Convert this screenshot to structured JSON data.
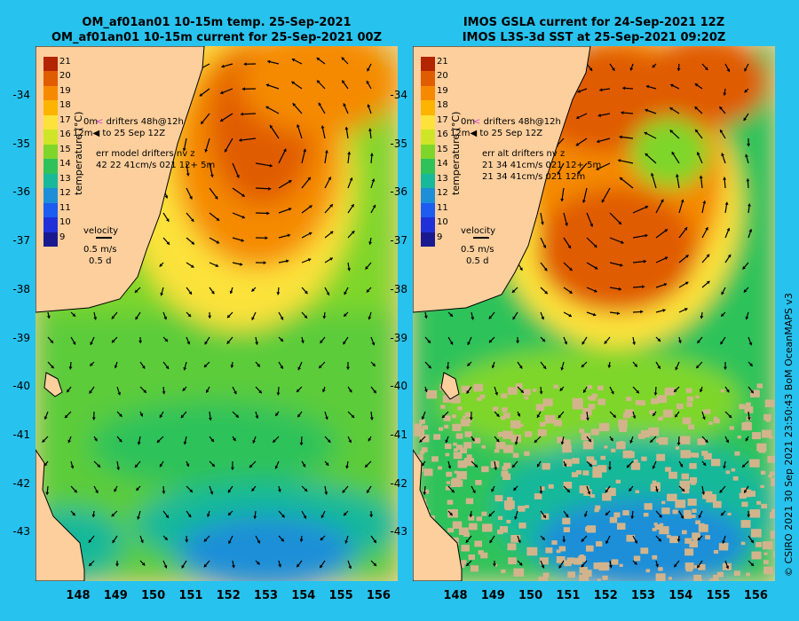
{
  "panels": [
    {
      "title_line1": "OM_af01an01 10-15m temp. 25-Sep-2021",
      "title_line2": "OM_af01an01 10-15m current for 25-Sep-2021 00Z",
      "colorbar_title": "temperature (°C)",
      "legend": {
        "drifters_line1": "drifters 48h@12h",
        "drifters_line2": "to 25 Sep 12Z",
        "depth_tag": "12m",
        "depth_tag2": "0m",
        "err_line1": "err model drifters nv z",
        "err_line2": "42 22 41cm/s 021 12+ 5m",
        "err_line3": "",
        "velocity_label": "velocity",
        "velocity_scale": "0.5 m/s",
        "velocity_days": "0.5 d"
      }
    },
    {
      "title_line1": "IMOS GSLA current for 24-Sep-2021 12Z",
      "title_line2": "IMOS L3S-3d SST at 25-Sep-2021 09:20Z",
      "colorbar_title": "temperature (°C)",
      "legend": {
        "drifters_line1": "drifters 48h@12h",
        "drifters_line2": "to 25 Sep 12Z",
        "depth_tag": "12m",
        "depth_tag2": "0m",
        "err_line1": "err alt drifters nv z",
        "err_line2": "21 34 41cm/s 021 12+ 5m",
        "err_line3": "21 34 41cm/s 021 12m",
        "velocity_label": "velocity",
        "velocity_scale": "0.5 m/s",
        "velocity_days": "0.5 d"
      }
    }
  ],
  "colorbar": {
    "ticks": [
      "21",
      "20",
      "19",
      "18",
      "17",
      "16",
      "15",
      "14",
      "13",
      "12",
      "11",
      "10",
      "9"
    ],
    "colors": [
      "#b32400",
      "#e05c00",
      "#f58a00",
      "#fcb400",
      "#fce23a",
      "#cfe628",
      "#7fd62a",
      "#2fc25a",
      "#18b89a",
      "#1c8fd8",
      "#1c5cf0",
      "#2030d8",
      "#1a1a90"
    ]
  },
  "latitude_ticks": [
    "-34",
    "-35",
    "-36",
    "-37",
    "-38",
    "-39",
    "-40",
    "-41",
    "-42",
    "-43"
  ],
  "longitude_ticks": [
    "148",
    "149",
    "150",
    "151",
    "152",
    "153",
    "154",
    "155",
    "156"
  ],
  "credit": "© CSIRO 2021   30 Sep 2021 23:50:43 BoM OceanMAPS v3",
  "colors": {
    "background": "#28c2ee",
    "land": "#fccf9d",
    "drifter": "#e040e0"
  }
}
